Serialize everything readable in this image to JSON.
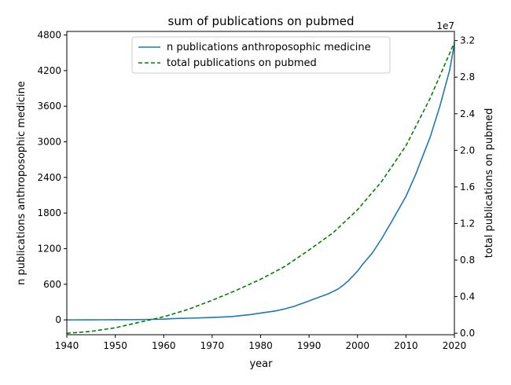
{
  "chart_data": {
    "type": "line",
    "title": "sum of publications on pubmed",
    "xlabel": "year",
    "ylabel_left": "n publications anthroposophic medicine",
    "ylabel_right": "total publications on pubmed",
    "right_axis_multiplier": "1e7",
    "xlim": [
      1940,
      2020
    ],
    "ylim_left": [
      -250,
      4860
    ],
    "ylim_right": [
      -160000,
      33000000
    ],
    "x_ticks": [
      "1940",
      "1950",
      "1960",
      "1970",
      "1980",
      "1990",
      "2000",
      "2010",
      "2020"
    ],
    "y_ticks_left": [
      "0",
      "600",
      "1200",
      "1800",
      "2400",
      "3000",
      "3600",
      "4200",
      "4800"
    ],
    "y_ticks_right": [
      "0.0",
      "0.4",
      "0.8",
      "1.2",
      "1.6",
      "2.0",
      "2.4",
      "2.8",
      "3.2"
    ],
    "grid": false,
    "legend_position": "top-center",
    "series": [
      {
        "name": "n publications anthroposophic medicine",
        "axis": "left",
        "color": "#1f77b4",
        "style": "solid",
        "points": [
          [
            1940,
            0
          ],
          [
            1945,
            1
          ],
          [
            1950,
            2
          ],
          [
            1955,
            5
          ],
          [
            1960,
            12
          ],
          [
            1962,
            22
          ],
          [
            1965,
            28
          ],
          [
            1970,
            40
          ],
          [
            1974,
            55
          ],
          [
            1978,
            90
          ],
          [
            1980,
            115
          ],
          [
            1983,
            150
          ],
          [
            1985,
            185
          ],
          [
            1987,
            230
          ],
          [
            1990,
            320
          ],
          [
            1992,
            380
          ],
          [
            1994,
            440
          ],
          [
            1996,
            520
          ],
          [
            1997,
            580
          ],
          [
            1998,
            650
          ],
          [
            2000,
            820
          ],
          [
            2001,
            930
          ],
          [
            2003,
            1120
          ],
          [
            2005,
            1370
          ],
          [
            2007,
            1650
          ],
          [
            2010,
            2080
          ],
          [
            2012,
            2450
          ],
          [
            2015,
            3080
          ],
          [
            2017,
            3600
          ],
          [
            2019,
            4200
          ],
          [
            2020,
            4650
          ]
        ]
      },
      {
        "name": "total publications on pubmed",
        "axis": "right",
        "color": "#008000",
        "style": "dashed",
        "points": [
          [
            1940,
            0
          ],
          [
            1945,
            200000
          ],
          [
            1950,
            600000
          ],
          [
            1955,
            1200000
          ],
          [
            1960,
            1800000
          ],
          [
            1965,
            2600000
          ],
          [
            1970,
            3600000
          ],
          [
            1975,
            4700000
          ],
          [
            1980,
            5900000
          ],
          [
            1985,
            7300000
          ],
          [
            1990,
            9100000
          ],
          [
            1995,
            11000000
          ],
          [
            2000,
            13500000
          ],
          [
            2005,
            16600000
          ],
          [
            2010,
            20500000
          ],
          [
            2015,
            25700000
          ],
          [
            2020,
            31800000
          ]
        ]
      }
    ]
  }
}
